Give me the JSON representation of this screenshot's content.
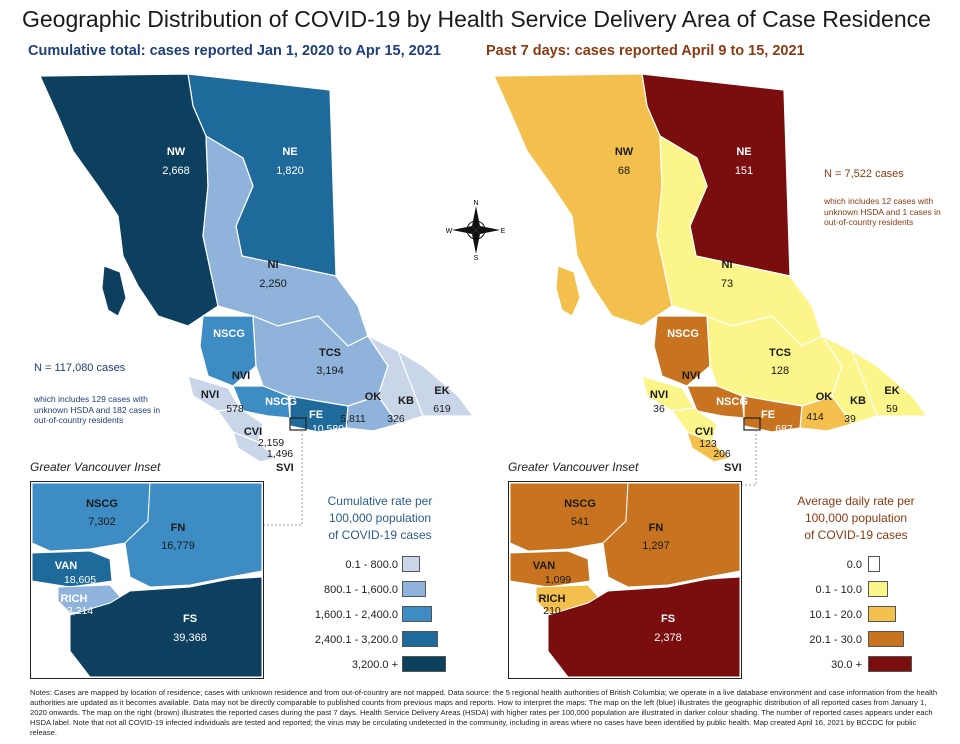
{
  "header": {
    "title": "Geographic Distribution of COVID-19 by Health Service Delivery Area of Case Residence",
    "left_subtitle": "Cumulative total: cases reported Jan 1, 2020 to Apr 15, 2021",
    "right_subtitle": "Past 7 days: cases reported April 9 to 15, 2021"
  },
  "left_map": {
    "total": "N = 117,080 cases",
    "note": "which includes 129 cases with unknown HSDA and 182 cases in out-of-country residents",
    "regions": [
      {
        "code": "NW",
        "value": "2,668"
      },
      {
        "code": "NE",
        "value": "1,820"
      },
      {
        "code": "NI",
        "value": "2,250"
      },
      {
        "code": "NSCG",
        "value": ""
      },
      {
        "code": "TCS",
        "value": "3,194"
      },
      {
        "code": "NVI",
        "value": ""
      },
      {
        "code": "VI",
        "value": "578"
      },
      {
        "code": "NSCG2",
        "value": ""
      },
      {
        "code": "FE",
        "value": "10,580"
      },
      {
        "code": "OK",
        "value": "5,811"
      },
      {
        "code": "KB",
        "value": "326"
      },
      {
        "code": "EK",
        "value": "619"
      },
      {
        "code": "CVI",
        "value": "2,159"
      },
      {
        "code": "SVI",
        "value": "1,496"
      }
    ],
    "labels": {
      "NW": "NW",
      "NE": "NE",
      "NI": "NI",
      "NSCG": "NSCG",
      "TCS": "TCS",
      "NVI": "NVI",
      "NVI2": "NVI",
      "NSCG2": "NSCG",
      "FE": "FE",
      "OK": "OK",
      "KB": "KB",
      "EK": "EK",
      "CVI": "CVI",
      "SVI": "SVI"
    },
    "inset": {
      "title": "Greater Vancouver Inset",
      "areas": [
        {
          "code": "NSCG",
          "value": "7,302"
        },
        {
          "code": "FN",
          "value": "16,779"
        },
        {
          "code": "VAN",
          "value": "18,605"
        },
        {
          "code": "RICH",
          "value": "3,214"
        },
        {
          "code": "FS",
          "value": "39,368"
        }
      ]
    },
    "legend": {
      "title": "Cumulative rate per 100,000 population of COVID-19 cases",
      "title_lines": [
        "Cumulative rate per",
        "100,000 population",
        "of COVID-19 cases"
      ],
      "items": [
        {
          "label": "0.1 - 800.0",
          "color": "#c9d6ea"
        },
        {
          "label": "800.1 - 1,600.0",
          "color": "#8fb3da"
        },
        {
          "label": "1,600.1 - 2,400.0",
          "color": "#3d8cc4"
        },
        {
          "label": "2,400.1 - 3,200.0",
          "color": "#1e6a9a"
        },
        {
          "label": "3,200.0 +",
          "color": "#0d3f5e"
        }
      ]
    }
  },
  "right_map": {
    "total": "N = 7,522 cases",
    "note": "which includes 12 cases with unknown HSDA and 1 cases in out-of-country residents",
    "regions": [
      {
        "code": "NW",
        "value": "68"
      },
      {
        "code": "NE",
        "value": "151"
      },
      {
        "code": "NI",
        "value": "73"
      },
      {
        "code": "NSCG",
        "value": ""
      },
      {
        "code": "TCS",
        "value": "128"
      },
      {
        "code": "NVI",
        "value": "36"
      },
      {
        "code": "FE",
        "value": "687"
      },
      {
        "code": "OK",
        "value": "414"
      },
      {
        "code": "KB",
        "value": "39"
      },
      {
        "code": "EK",
        "value": "59"
      },
      {
        "code": "CVI",
        "value": "123"
      },
      {
        "code": "SVI",
        "value": "206"
      }
    ],
    "inset": {
      "title": "Greater Vancouver Inset",
      "areas": [
        {
          "code": "NSCG",
          "value": "541"
        },
        {
          "code": "FN",
          "value": "1,297"
        },
        {
          "code": "VAN",
          "value": "1,099"
        },
        {
          "code": "RICH",
          "value": "210"
        },
        {
          "code": "FS",
          "value": "2,378"
        }
      ]
    },
    "legend": {
      "title": "Average daily rate per 100,000 population of COVID-19 cases",
      "title_lines": [
        "Average daily rate per",
        "100,000 population",
        "of COVID-19 cases"
      ],
      "items": [
        {
          "label": "0.0",
          "color": "#ffffff"
        },
        {
          "label": "0.1 - 10.0",
          "color": "#fbf58a"
        },
        {
          "label": "10.1 - 20.0",
          "color": "#f3c04d"
        },
        {
          "label": "20.1 - 30.0",
          "color": "#c8731f"
        },
        {
          "label": "30.0 +",
          "color": "#7a0d0d"
        }
      ]
    }
  },
  "compass": {
    "n": "N",
    "s": "S",
    "e": "E",
    "w": "W"
  },
  "footer": "Notes: Cases are mapped by location of residence; cases with unknown residence and from out-of-country are not mapped. Data source: the 5 regional health authorities of British Columbia; we operate in a live database environment and case information from the health authorities are updated as it becomes available. Data may not be directly comparable to published counts from previous maps and reports. How to interpret the maps: The map on the left (blue) illustrates the geographic distribution of all reported cases from January 1, 2020 onwards. The map on the right (brown) illustrates the reported cases during the past 7 days. Health Service Delivery Areas (HSDA) with higher rates per 100,000 population are illustrated in darker colour shading. The number of reported cases appears under each HSDA label. Note that not all COVID-19 infected individuals are tested and reported; the virus may be circulating undetected in the community, including in areas where no cases have been identified by public health. Map created April 16, 2021 by BCCDC for public release."
}
